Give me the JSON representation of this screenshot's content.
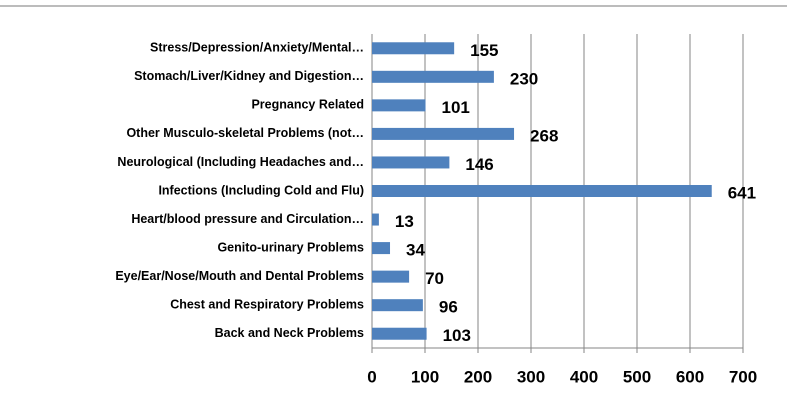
{
  "chart_data": {
    "type": "bar",
    "orientation": "horizontal",
    "categories": [
      "Stress/Depression/Anxiety/Mental…",
      "Stomach/Liver/Kidney and Digestion…",
      "Pregnancy Related",
      "Other Musculo-skeletal Problems (not…",
      "Neurological (Including Headaches and…",
      "Infections (Including Cold and Flu)",
      "Heart/blood pressure and Circulation…",
      "Genito-urinary Problems",
      "Eye/Ear/Nose/Mouth and Dental Problems",
      "Chest and Respiratory Problems",
      "Back and Neck Problems"
    ],
    "values": [
      155,
      230,
      101,
      268,
      146,
      641,
      13,
      34,
      70,
      96,
      103
    ],
    "color": "#4f81bd",
    "xlim": [
      0,
      700
    ],
    "xticks": [
      0,
      100,
      200,
      300,
      400,
      500,
      600,
      700
    ],
    "grid": true
  }
}
